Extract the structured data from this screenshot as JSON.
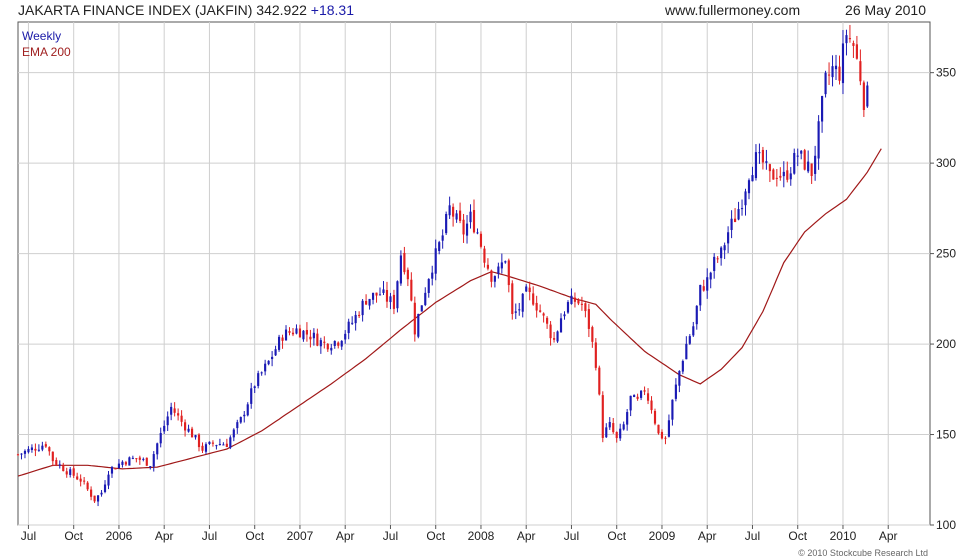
{
  "header": {
    "title": "JAKARTA FINANCE INDEX (JAKFIN) 342.922",
    "change": "+18.31",
    "site": "www.fullermoney.com",
    "date": "26 May 2010"
  },
  "copyright": "© 2010 Stockcube Research Ltd",
  "colors": {
    "up": "#1a1ab4",
    "down": "#e02020",
    "ema": "#a01818",
    "grid": "#cfcfcf",
    "axis": "#555555"
  },
  "chart_data": {
    "type": "candlestick",
    "legend": [
      "Weekly",
      "EMA 200"
    ],
    "legend_position": "top-left",
    "grid": true,
    "x_ticks": [
      {
        "label": "Jul",
        "week": 3
      },
      {
        "label": "Oct",
        "week": 16
      },
      {
        "label": "2006",
        "week": 29
      },
      {
        "label": "Apr",
        "week": 42
      },
      {
        "label": "Jul",
        "week": 55
      },
      {
        "label": "Oct",
        "week": 68
      },
      {
        "label": "2007",
        "week": 81
      },
      {
        "label": "Apr",
        "week": 94
      },
      {
        "label": "Jul",
        "week": 107
      },
      {
        "label": "Oct",
        "week": 120
      },
      {
        "label": "2008",
        "week": 133
      },
      {
        "label": "Apr",
        "week": 146
      },
      {
        "label": "Jul",
        "week": 159
      },
      {
        "label": "Oct",
        "week": 172
      },
      {
        "label": "2009",
        "week": 185
      },
      {
        "label": "Apr",
        "week": 198
      },
      {
        "label": "Jul",
        "week": 211
      },
      {
        "label": "Oct",
        "week": 224
      },
      {
        "label": "2010",
        "week": 237
      },
      {
        "label": "Apr",
        "week": 250
      }
    ],
    "y_ticks": [
      100,
      150,
      200,
      250,
      300,
      350
    ],
    "ylim": [
      100,
      378
    ],
    "x_range_weeks": [
      0,
      262
    ],
    "close_anchors": [
      [
        0,
        139
      ],
      [
        4,
        142
      ],
      [
        8,
        145
      ],
      [
        10,
        136
      ],
      [
        14,
        130
      ],
      [
        18,
        125
      ],
      [
        22,
        114
      ],
      [
        24,
        118
      ],
      [
        26,
        130
      ],
      [
        30,
        135
      ],
      [
        34,
        137
      ],
      [
        38,
        134
      ],
      [
        40,
        145
      ],
      [
        44,
        165
      ],
      [
        47,
        157
      ],
      [
        50,
        150
      ],
      [
        53,
        142
      ],
      [
        56,
        145
      ],
      [
        60,
        145
      ],
      [
        64,
        158
      ],
      [
        68,
        178
      ],
      [
        72,
        190
      ],
      [
        76,
        205
      ],
      [
        80,
        208
      ],
      [
        84,
        205
      ],
      [
        88,
        200
      ],
      [
        92,
        202
      ],
      [
        96,
        212
      ],
      [
        100,
        225
      ],
      [
        104,
        228
      ],
      [
        108,
        222
      ],
      [
        110,
        250
      ],
      [
        112,
        238
      ],
      [
        114,
        208
      ],
      [
        118,
        238
      ],
      [
        122,
        260
      ],
      [
        124,
        275
      ],
      [
        126,
        268
      ],
      [
        128,
        262
      ],
      [
        130,
        270
      ],
      [
        132,
        262
      ],
      [
        134,
        248
      ],
      [
        136,
        238
      ],
      [
        138,
        240
      ],
      [
        140,
        248
      ],
      [
        142,
        215
      ],
      [
        144,
        220
      ],
      [
        146,
        228
      ],
      [
        148,
        225
      ],
      [
        150,
        218
      ],
      [
        152,
        210
      ],
      [
        154,
        202
      ],
      [
        156,
        215
      ],
      [
        158,
        222
      ],
      [
        160,
        224
      ],
      [
        162,
        222
      ],
      [
        164,
        210
      ],
      [
        166,
        190
      ],
      [
        168,
        150
      ],
      [
        170,
        155
      ],
      [
        172,
        147
      ],
      [
        174,
        155
      ],
      [
        176,
        170
      ],
      [
        178,
        168
      ],
      [
        180,
        175
      ],
      [
        182,
        165
      ],
      [
        184,
        150
      ],
      [
        186,
        148
      ],
      [
        188,
        168
      ],
      [
        190,
        185
      ],
      [
        192,
        200
      ],
      [
        194,
        210
      ],
      [
        196,
        230
      ],
      [
        198,
        235
      ],
      [
        200,
        245
      ],
      [
        202,
        250
      ],
      [
        204,
        262
      ],
      [
        206,
        270
      ],
      [
        208,
        280
      ],
      [
        210,
        295
      ],
      [
        212,
        302
      ],
      [
        214,
        300
      ],
      [
        216,
        292
      ],
      [
        218,
        295
      ],
      [
        220,
        292
      ],
      [
        222,
        298
      ],
      [
        224,
        305
      ],
      [
        226,
        300
      ],
      [
        228,
        295
      ],
      [
        230,
        318
      ],
      [
        232,
        345
      ],
      [
        234,
        352
      ],
      [
        236,
        350
      ],
      [
        238,
        372
      ],
      [
        240,
        365
      ],
      [
        242,
        348
      ],
      [
        243,
        335
      ],
      [
        244,
        342.9
      ]
    ],
    "ema_anchors": [
      [
        0,
        127
      ],
      [
        10,
        133
      ],
      [
        20,
        133
      ],
      [
        30,
        131
      ],
      [
        40,
        132
      ],
      [
        50,
        137
      ],
      [
        60,
        142
      ],
      [
        70,
        152
      ],
      [
        80,
        165
      ],
      [
        90,
        178
      ],
      [
        100,
        192
      ],
      [
        110,
        208
      ],
      [
        120,
        223
      ],
      [
        130,
        235
      ],
      [
        136,
        240
      ],
      [
        140,
        238
      ],
      [
        150,
        232
      ],
      [
        160,
        225
      ],
      [
        166,
        222
      ],
      [
        170,
        214
      ],
      [
        180,
        196
      ],
      [
        190,
        183
      ],
      [
        196,
        178
      ],
      [
        202,
        186
      ],
      [
        208,
        198
      ],
      [
        214,
        218
      ],
      [
        220,
        245
      ],
      [
        226,
        262
      ],
      [
        232,
        272
      ],
      [
        238,
        280
      ],
      [
        244,
        295
      ],
      [
        248,
        308
      ]
    ]
  }
}
